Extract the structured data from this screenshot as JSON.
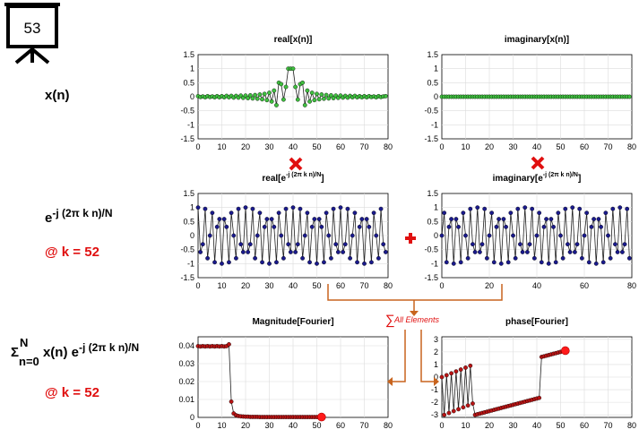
{
  "slide_number": "53",
  "left_labels": {
    "xn": "x(n)",
    "twiddle_base": "e",
    "twiddle_exp": "-j (2π k n)/N",
    "k_note_1": "@ k = 52",
    "sum_symbol": "Σ",
    "sum_upper": "N",
    "sum_lower": "n=0",
    "sum_term": "x(n) e",
    "sum_exp": "-j (2π k n)/N",
    "k_note_2": "@ k = 52"
  },
  "annotation": {
    "sum_text": "All Elements"
  },
  "colors": {
    "accent_red": "#e01010",
    "orange_arrow": "#c8641e",
    "green_marker": "#3fbf3f",
    "blue_marker": "#1a1a8c",
    "dark_red_marker": "#b81414"
  },
  "chart_data": [
    {
      "id": "real_x",
      "type": "line",
      "title": "real[x(n)]",
      "x_ticks": [
        "0",
        "10",
        "20",
        "30",
        "40",
        "50",
        "60",
        "70",
        "80"
      ],
      "y_ticks": [
        "1.5",
        "1",
        "0.5",
        "0",
        "-0.5",
        "-1",
        "-1.5"
      ],
      "xlim": [
        0,
        80
      ],
      "ylim": [
        -1.5,
        1.5
      ],
      "grid": true,
      "marker_color": "#3fbf3f",
      "n": 80,
      "values": [
        0.02,
        -0.01,
        0.01,
        -0.02,
        0.02,
        -0.01,
        0.01,
        -0.02,
        0.02,
        -0.02,
        0.02,
        -0.02,
        0.03,
        -0.02,
        0.03,
        -0.03,
        0.03,
        -0.03,
        0.04,
        -0.04,
        0.04,
        -0.05,
        0.05,
        -0.06,
        0.06,
        -0.07,
        0.08,
        -0.09,
        0.1,
        -0.12,
        0.14,
        -0.17,
        0.22,
        -0.3,
        0.5,
        0.45,
        -0.1,
        0.35,
        1.0,
        1.0,
        1.0,
        0.35,
        -0.1,
        0.45,
        0.5,
        -0.3,
        0.22,
        -0.17,
        0.14,
        -0.12,
        0.1,
        -0.09,
        0.08,
        -0.07,
        0.06,
        -0.06,
        0.05,
        -0.05,
        0.04,
        -0.04,
        0.04,
        -0.03,
        0.03,
        -0.03,
        0.03,
        -0.02,
        0.03,
        -0.02,
        0.02,
        -0.02,
        0.02,
        -0.02,
        0.02,
        -0.01,
        0.01,
        -0.02,
        0.02,
        -0.01,
        0.01,
        0.02
      ]
    },
    {
      "id": "imag_x",
      "type": "line",
      "title": "imaginary[x(n)]",
      "x_ticks": [
        "0",
        "10",
        "20",
        "30",
        "40",
        "50",
        "60",
        "70",
        "80"
      ],
      "y_ticks": [
        "1.5",
        "1",
        "0.5",
        "0",
        "-0.5",
        "-1",
        "-1.5"
      ],
      "xlim": [
        0,
        80
      ],
      "ylim": [
        -1.5,
        1.5
      ],
      "grid": true,
      "marker_color": "#3fbf3f",
      "n": 80,
      "values_constant": 0
    },
    {
      "id": "real_twiddle",
      "type": "line",
      "title": "real[e",
      "title_sup": "-j (2π k n)/N",
      "title_end": "]",
      "x_ticks": [
        "0",
        "10",
        "20",
        "30",
        "40",
        "50",
        "60",
        "70",
        "80"
      ],
      "y_ticks": [
        "1.5",
        "1",
        "0.5",
        "0",
        "-0.5",
        "-1",
        "-1.5"
      ],
      "xlim": [
        0,
        80
      ],
      "ylim": [
        -1.5,
        1.5
      ],
      "grid": true,
      "marker_color": "#1a1a8c",
      "n": 80,
      "k": 52,
      "N": 80,
      "component": "cos"
    },
    {
      "id": "imag_twiddle",
      "type": "line",
      "title": "imaginary[e",
      "title_sup": "-j (2π k n)/N",
      "title_end": "]",
      "x_ticks": [
        "0",
        "20",
        "40",
        "60",
        "80"
      ],
      "y_ticks": [
        "1.5",
        "1",
        "0.5",
        "0",
        "-0.5",
        "-1",
        "-1.5"
      ],
      "xlim": [
        0,
        80
      ],
      "ylim": [
        -1.5,
        1.5
      ],
      "grid": true,
      "marker_color": "#1a1a8c",
      "n": 80,
      "k": 52,
      "N": 80,
      "component": "-sin"
    },
    {
      "id": "magnitude",
      "type": "line",
      "title": "Magnitude[Fourier]",
      "x_ticks": [
        "0",
        "10",
        "20",
        "30",
        "40",
        "50",
        "60",
        "70",
        "80"
      ],
      "y_ticks": [
        "0.04",
        "0.03",
        "0.02",
        "0.01",
        "0"
      ],
      "xlim": [
        0,
        80
      ],
      "ylim": [
        0,
        0.045
      ],
      "grid": true,
      "marker_color": "#b81414",
      "x": [
        0,
        1,
        2,
        3,
        4,
        5,
        6,
        7,
        8,
        9,
        10,
        11,
        12,
        13,
        14,
        15,
        16,
        17,
        18,
        19,
        20,
        21,
        22,
        23,
        24,
        25,
        26,
        27,
        28,
        29,
        30,
        31,
        32,
        33,
        34,
        35,
        36,
        37,
        38,
        39,
        40,
        41,
        42,
        43,
        44,
        45,
        46,
        47,
        48,
        49,
        50,
        51,
        52
      ],
      "values": [
        0.0398,
        0.0396,
        0.0398,
        0.0396,
        0.0398,
        0.0396,
        0.0398,
        0.0396,
        0.0398,
        0.0396,
        0.0398,
        0.0396,
        0.0398,
        0.0408,
        0.0088,
        0.0022,
        0.0012,
        0.0008,
        0.0006,
        0.0005,
        0.0004,
        0.0004,
        0.0003,
        0.0003,
        0.0003,
        0.0003,
        0.0002,
        0.0002,
        0.0002,
        0.0002,
        0.0002,
        0.0002,
        0.0002,
        0.0002,
        0.0002,
        0.0002,
        0.0002,
        0.0002,
        0.0002,
        0.0002,
        0.0002,
        0.0002,
        0.0002,
        0.0002,
        0.0002,
        0.0002,
        0.0002,
        0.0002,
        0.0002,
        0.0002,
        0.0002,
        0.0002,
        0.0002
      ],
      "highlight": {
        "x": 52,
        "y": 0.0002
      }
    },
    {
      "id": "phase",
      "type": "line",
      "title": "phase[Fourier]",
      "x_ticks": [
        "0",
        "10",
        "20",
        "30",
        "40",
        "50",
        "60",
        "70",
        "80"
      ],
      "y_ticks": [
        "3",
        "2",
        "1",
        "0",
        "-1",
        "-2",
        "-3"
      ],
      "xlim": [
        0,
        80
      ],
      "ylim": [
        -3.2,
        3.2
      ],
      "grid": true,
      "marker_color": "#b81414",
      "x": [
        0,
        1,
        2,
        3,
        4,
        5,
        6,
        7,
        8,
        9,
        10,
        11,
        12,
        13,
        14,
        15,
        16,
        17,
        18,
        19,
        20,
        21,
        22,
        23,
        24,
        25,
        26,
        27,
        28,
        29,
        30,
        31,
        32,
        33,
        34,
        35,
        36,
        37,
        38,
        39,
        40,
        41,
        42,
        43,
        44,
        45,
        46,
        47,
        48,
        49,
        50,
        51,
        52
      ],
      "values": [
        0.0,
        -3.0,
        0.15,
        -2.85,
        0.3,
        -2.7,
        0.45,
        -2.55,
        0.6,
        -2.4,
        0.75,
        -2.25,
        0.9,
        -2.1,
        -3.0,
        -2.95,
        -2.9,
        -2.85,
        -2.8,
        -2.75,
        -2.7,
        -2.65,
        -2.6,
        -2.55,
        -2.5,
        -2.45,
        -2.4,
        -2.35,
        -2.3,
        -2.25,
        -2.2,
        -2.15,
        -2.1,
        -2.05,
        -2.0,
        -1.95,
        -1.9,
        -1.85,
        -1.8,
        -1.75,
        -1.7,
        -1.65,
        1.6,
        1.65,
        1.7,
        1.75,
        1.8,
        1.85,
        1.9,
        1.95,
        2.0,
        2.05,
        2.1
      ],
      "highlight": {
        "x": 52,
        "y": 2.1
      }
    }
  ]
}
